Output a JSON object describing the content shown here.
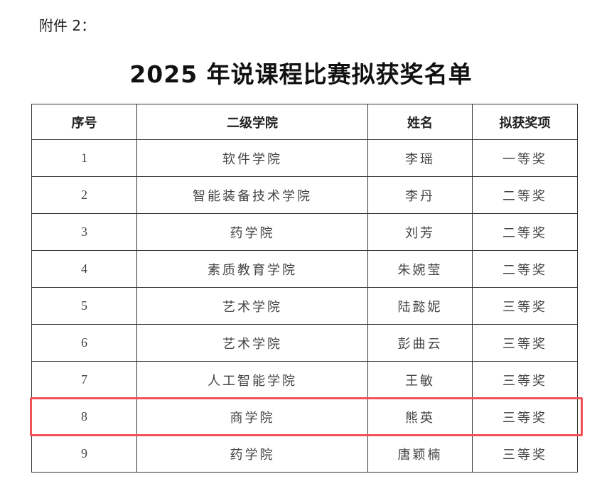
{
  "attachment_label": "附件 2：",
  "title": "2025 年说课程比赛拟获奖名单",
  "table": {
    "headers": [
      "序号",
      "二级学院",
      "姓名",
      "拟获奖项"
    ],
    "rows": [
      [
        "1",
        "软件学院",
        "李瑶",
        "一等奖"
      ],
      [
        "2",
        "智能装备技术学院",
        "李丹",
        "二等奖"
      ],
      [
        "3",
        "药学院",
        "刘芳",
        "二等奖"
      ],
      [
        "4",
        "素质教育学院",
        "朱婉莹",
        "二等奖"
      ],
      [
        "5",
        "艺术学院",
        "陆懿妮",
        "三等奖"
      ],
      [
        "6",
        "艺术学院",
        "彭曲云",
        "三等奖"
      ],
      [
        "7",
        "人工智能学院",
        "王敏",
        "三等奖"
      ],
      [
        "8",
        "商学院",
        "熊英",
        "三等奖"
      ],
      [
        "9",
        "药学院",
        "唐颖楠",
        "三等奖"
      ]
    ],
    "highlighted_row": 8,
    "highlight_color": "#f0525a"
  }
}
